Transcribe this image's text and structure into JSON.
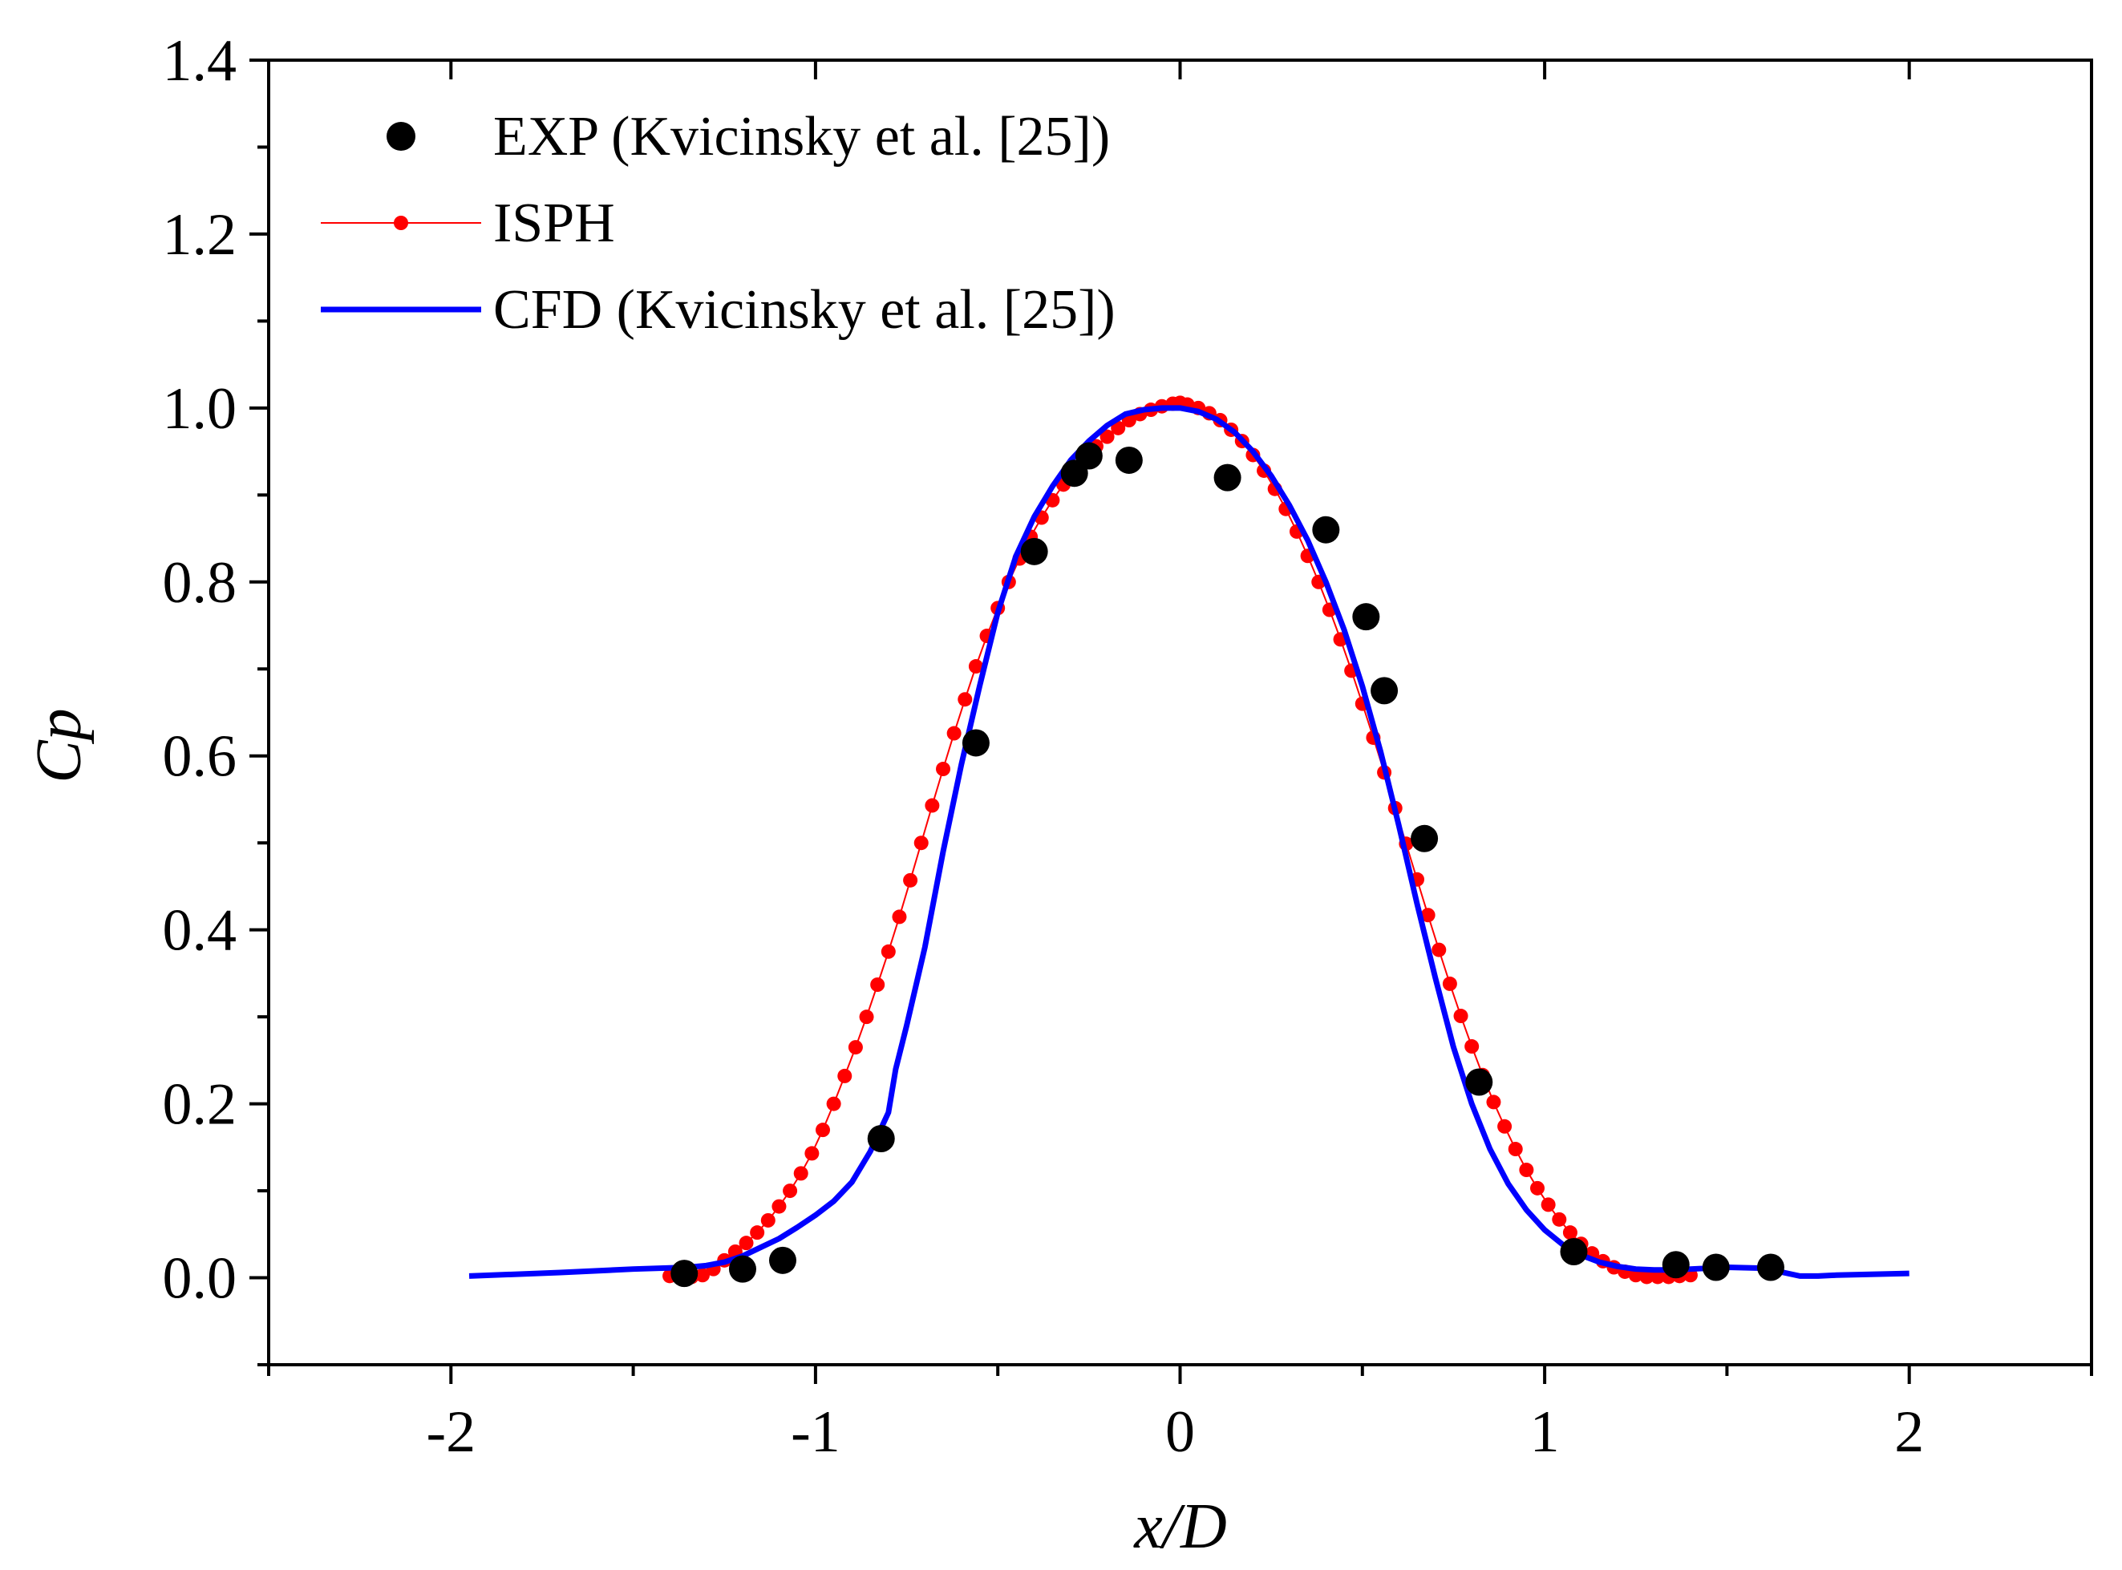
{
  "chart_data": {
    "type": "scatter+line",
    "title": "",
    "xlabel": "x/D",
    "ylabel": "Cp",
    "xlim": [
      -2.5,
      2.5
    ],
    "ylim": [
      -0.1,
      1.4
    ],
    "xticks": [
      -2,
      -1,
      0,
      1,
      2
    ],
    "xtick_labels": [
      "-2",
      "-1",
      "0",
      "1",
      "2"
    ],
    "yticks": [
      0.0,
      0.2,
      0.4,
      0.6,
      0.8,
      1.0,
      1.2,
      1.4
    ],
    "ytick_labels": [
      "0.0",
      "0.2",
      "0.4",
      "0.6",
      "0.8",
      "1.0",
      "1.2",
      "1.4"
    ],
    "grid": false,
    "legend_position": "top-left",
    "colors": {
      "exp": "#000000",
      "isph": "#ff0000",
      "cfd": "#0000ff"
    },
    "series": [
      {
        "name": "EXP (Kvicinsky et al. [25])",
        "kind": "scatter",
        "x": [
          -1.36,
          -1.2,
          -1.09,
          -0.82,
          -0.56,
          -0.4,
          -0.29,
          -0.25,
          -0.14,
          0.13,
          0.4,
          0.51,
          0.56,
          0.67,
          0.82,
          1.08,
          1.36,
          1.47,
          1.62
        ],
        "y": [
          0.005,
          0.01,
          0.02,
          0.16,
          0.615,
          0.835,
          0.925,
          0.945,
          0.94,
          0.92,
          0.86,
          0.76,
          0.675,
          0.505,
          0.225,
          0.03,
          0.015,
          0.012,
          0.012
        ]
      },
      {
        "name": "ISPH",
        "kind": "line+markers",
        "x": [
          -1.4,
          -1.37,
          -1.34,
          -1.31,
          -1.28,
          -1.25,
          -1.22,
          -1.19,
          -1.16,
          -1.13,
          -1.1,
          -1.07,
          -1.04,
          -1.01,
          -0.98,
          -0.95,
          -0.92,
          -0.89,
          -0.86,
          -0.83,
          -0.8,
          -0.77,
          -0.74,
          -0.71,
          -0.68,
          -0.65,
          -0.62,
          -0.59,
          -0.56,
          -0.53,
          -0.5,
          -0.47,
          -0.44,
          -0.41,
          -0.38,
          -0.35,
          -0.32,
          -0.29,
          -0.26,
          -0.23,
          -0.2,
          -0.17,
          -0.14,
          -0.11,
          -0.08,
          -0.05,
          -0.02,
          0.0,
          0.02,
          0.05,
          0.08,
          0.11,
          0.14,
          0.17,
          0.2,
          0.23,
          0.26,
          0.29,
          0.32,
          0.35,
          0.38,
          0.41,
          0.44,
          0.47,
          0.5,
          0.53,
          0.56,
          0.59,
          0.62,
          0.65,
          0.68,
          0.71,
          0.74,
          0.77,
          0.8,
          0.83,
          0.86,
          0.89,
          0.92,
          0.95,
          0.98,
          1.01,
          1.04,
          1.07,
          1.1,
          1.13,
          1.16,
          1.19,
          1.22,
          1.25,
          1.28,
          1.31,
          1.34,
          1.37,
          1.4
        ],
        "y": [
          0.002,
          0.001,
          0.001,
          0.003,
          0.01,
          0.02,
          0.03,
          0.04,
          0.052,
          0.066,
          0.082,
          0.1,
          0.12,
          0.143,
          0.17,
          0.2,
          0.232,
          0.265,
          0.3,
          0.337,
          0.375,
          0.415,
          0.457,
          0.5,
          0.543,
          0.585,
          0.626,
          0.665,
          0.703,
          0.738,
          0.77,
          0.8,
          0.827,
          0.852,
          0.874,
          0.894,
          0.912,
          0.928,
          0.943,
          0.956,
          0.967,
          0.977,
          0.986,
          0.993,
          0.998,
          1.002,
          1.005,
          1.006,
          1.004,
          1.0,
          0.994,
          0.986,
          0.975,
          0.962,
          0.946,
          0.928,
          0.907,
          0.884,
          0.858,
          0.83,
          0.8,
          0.768,
          0.734,
          0.698,
          0.66,
          0.621,
          0.581,
          0.54,
          0.499,
          0.458,
          0.417,
          0.377,
          0.338,
          0.301,
          0.266,
          0.233,
          0.202,
          0.174,
          0.148,
          0.124,
          0.103,
          0.084,
          0.067,
          0.052,
          0.039,
          0.028,
          0.019,
          0.012,
          0.007,
          0.003,
          0.001,
          0.001,
          0.001,
          0.002,
          0.003
        ]
      },
      {
        "name": "CFD (Kvicinsky et al. [25])",
        "kind": "line",
        "x": [
          -1.95,
          -1.7,
          -1.5,
          -1.35,
          -1.3,
          -1.25,
          -1.2,
          -1.15,
          -1.1,
          -1.05,
          -1.0,
          -0.95,
          -0.9,
          -0.85,
          -0.8,
          -0.78,
          -0.75,
          -0.7,
          -0.65,
          -0.6,
          -0.55,
          -0.5,
          -0.45,
          -0.4,
          -0.35,
          -0.3,
          -0.25,
          -0.2,
          -0.15,
          -0.1,
          -0.05,
          0.0,
          0.05,
          0.1,
          0.15,
          0.2,
          0.25,
          0.3,
          0.35,
          0.4,
          0.45,
          0.5,
          0.55,
          0.6,
          0.65,
          0.7,
          0.75,
          0.8,
          0.85,
          0.9,
          0.95,
          1.0,
          1.05,
          1.1,
          1.15,
          1.2,
          1.25,
          1.3,
          1.35,
          1.4,
          1.5,
          1.6,
          1.7,
          1.75,
          1.8,
          2.0
        ],
        "y": [
          0.002,
          0.006,
          0.01,
          0.012,
          0.014,
          0.018,
          0.025,
          0.035,
          0.045,
          0.058,
          0.072,
          0.088,
          0.11,
          0.145,
          0.19,
          0.24,
          0.29,
          0.38,
          0.49,
          0.59,
          0.68,
          0.765,
          0.83,
          0.875,
          0.91,
          0.94,
          0.962,
          0.98,
          0.993,
          0.998,
          1.0,
          1.0,
          0.996,
          0.987,
          0.972,
          0.95,
          0.922,
          0.888,
          0.848,
          0.8,
          0.745,
          0.68,
          0.605,
          0.52,
          0.43,
          0.345,
          0.265,
          0.2,
          0.148,
          0.108,
          0.078,
          0.055,
          0.038,
          0.026,
          0.018,
          0.013,
          0.01,
          0.009,
          0.009,
          0.01,
          0.012,
          0.011,
          0.002,
          0.002,
          0.003,
          0.005
        ]
      }
    ]
  }
}
